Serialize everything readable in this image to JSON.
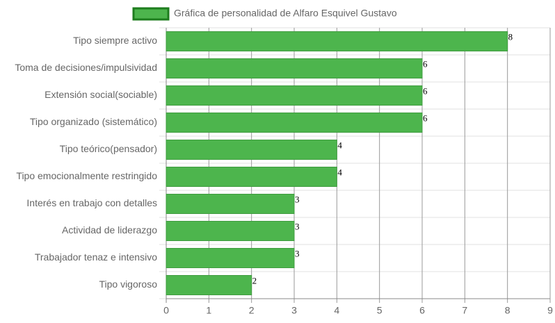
{
  "chart_data": {
    "type": "bar",
    "orientation": "horizontal",
    "categories": [
      "Tipo siempre activo",
      "Toma de decisiones/impulsividad",
      "Extensión social(sociable)",
      "Tipo organizado (sistemático)",
      "Tipo teórico(pensador)",
      "Tipo emocionalmente restringido",
      "Interés en trabajo con detalles",
      "Actividad de liderazgo",
      "Trabajador tenaz e intensivo",
      "Tipo vigoroso"
    ],
    "series": [
      {
        "name": "Gráfica de personalidad de Alfaro Esquivel Gustavo",
        "color": "#4db54d",
        "values": [
          8,
          6,
          6,
          6,
          4,
          4,
          3,
          3,
          3,
          2
        ]
      }
    ],
    "xlim": [
      0,
      9
    ],
    "xticks": [
      0,
      1,
      2,
      3,
      4,
      5,
      6,
      7,
      8,
      9
    ],
    "grid": true,
    "legend": "top"
  }
}
